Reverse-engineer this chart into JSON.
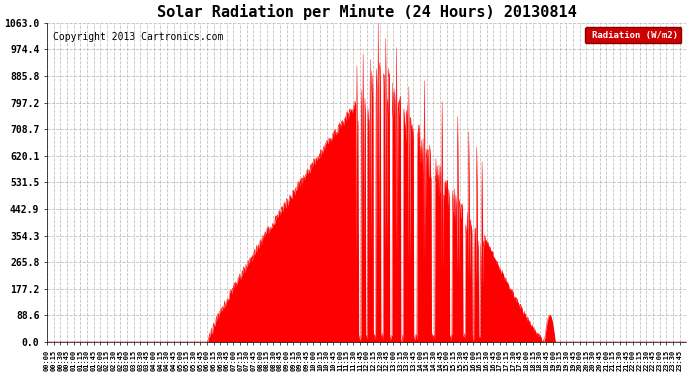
{
  "title": "Solar Radiation per Minute (24 Hours) 20130814",
  "copyright": "Copyright 2013 Cartronics.com",
  "legend_label": "Radiation (W/m2)",
  "y_ticks": [
    0.0,
    88.6,
    177.2,
    265.8,
    354.3,
    442.9,
    531.5,
    620.1,
    708.7,
    797.2,
    885.8,
    974.4,
    1063.0
  ],
  "y_max": 1063.0,
  "fill_color": "#ff0000",
  "line_color": "#ff0000",
  "background_color": "#ffffff",
  "grid_color": "#b0b0b0",
  "title_fontsize": 11,
  "copyright_fontsize": 7,
  "legend_bg": "#cc0000",
  "legend_text_color": "#ffffff"
}
